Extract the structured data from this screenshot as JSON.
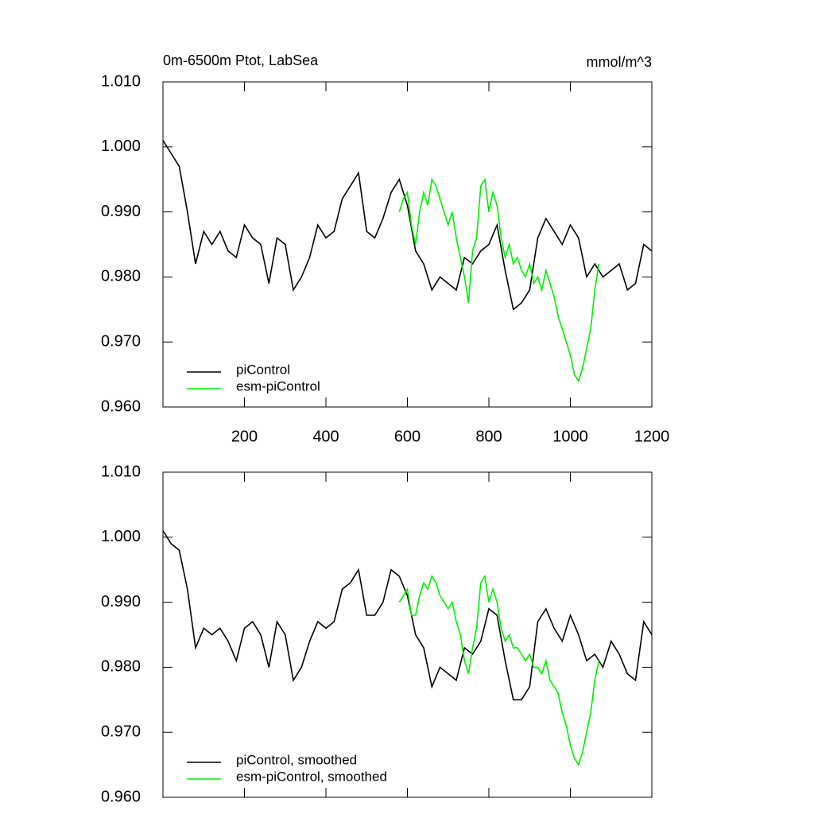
{
  "chart_data": [
    {
      "type": "line",
      "title": "0m-6500m Ptot, LabSea",
      "right_title": "mmol/m^3",
      "xlim": [
        0,
        1200
      ],
      "xticks": [
        200,
        400,
        600,
        800,
        1000,
        1200
      ],
      "show_xtick_labels": true,
      "ylim": [
        0.96,
        1.01
      ],
      "yticks": [
        {
          "value": 0.96,
          "label": "0.960"
        },
        {
          "value": 0.97,
          "label": "0.970"
        },
        {
          "value": 0.98,
          "label": "0.980"
        },
        {
          "value": 0.99,
          "label": "0.990"
        },
        {
          "value": 1.0,
          "label": "1.000"
        },
        {
          "value": 1.01,
          "label": "1.010"
        }
      ],
      "legend": "lower left",
      "series": [
        {
          "name": "piControl",
          "color": "#000000",
          "x": [
            0,
            20,
            40,
            60,
            80,
            100,
            120,
            140,
            160,
            180,
            200,
            220,
            240,
            260,
            280,
            300,
            320,
            340,
            360,
            380,
            400,
            420,
            440,
            460,
            480,
            500,
            520,
            540,
            560,
            580,
            600,
            620,
            640,
            660,
            680,
            700,
            720,
            740,
            760,
            780,
            800,
            820,
            840,
            860,
            880,
            900,
            920,
            940,
            960,
            980,
            1000,
            1020,
            1040,
            1060,
            1080,
            1100,
            1120,
            1140,
            1160,
            1180,
            1200
          ],
          "values": [
            1.001,
            0.999,
            0.997,
            0.99,
            0.982,
            0.987,
            0.985,
            0.987,
            0.984,
            0.983,
            0.988,
            0.986,
            0.985,
            0.979,
            0.986,
            0.985,
            0.978,
            0.98,
            0.983,
            0.988,
            0.986,
            0.987,
            0.992,
            0.994,
            0.996,
            0.987,
            0.986,
            0.989,
            0.993,
            0.995,
            0.991,
            0.984,
            0.982,
            0.978,
            0.98,
            0.979,
            0.978,
            0.983,
            0.982,
            0.984,
            0.985,
            0.988,
            0.981,
            0.975,
            0.976,
            0.978,
            0.986,
            0.989,
            0.987,
            0.985,
            0.988,
            0.986,
            0.98,
            0.982,
            0.98,
            0.981,
            0.982,
            0.978,
            0.979,
            0.985,
            0.984
          ]
        },
        {
          "name": "esm-piControl",
          "color": "#00ee00",
          "x": [
            580,
            590,
            600,
            610,
            620,
            630,
            640,
            650,
            660,
            670,
            680,
            690,
            700,
            710,
            720,
            730,
            740,
            750,
            760,
            770,
            780,
            790,
            800,
            810,
            820,
            830,
            840,
            850,
            860,
            870,
            880,
            890,
            900,
            910,
            920,
            930,
            940,
            950,
            960,
            970,
            980,
            990,
            1000,
            1010,
            1020,
            1030,
            1040,
            1050,
            1060,
            1070
          ],
          "values": [
            0.99,
            0.992,
            0.993,
            0.988,
            0.985,
            0.99,
            0.993,
            0.991,
            0.995,
            0.994,
            0.992,
            0.99,
            0.988,
            0.99,
            0.986,
            0.983,
            0.98,
            0.976,
            0.984,
            0.986,
            0.994,
            0.995,
            0.99,
            0.993,
            0.991,
            0.986,
            0.983,
            0.985,
            0.982,
            0.983,
            0.981,
            0.98,
            0.982,
            0.979,
            0.98,
            0.978,
            0.981,
            0.979,
            0.977,
            0.974,
            0.972,
            0.97,
            0.968,
            0.965,
            0.964,
            0.966,
            0.969,
            0.972,
            0.978,
            0.982
          ]
        }
      ]
    },
    {
      "type": "line",
      "xlim": [
        0,
        1200
      ],
      "xticks": [
        200,
        400,
        600,
        800,
        1000,
        1200
      ],
      "show_xtick_labels": false,
      "ylim": [
        0.96,
        1.01
      ],
      "yticks": [
        {
          "value": 0.96,
          "label": "0.960"
        },
        {
          "value": 0.97,
          "label": "0.970"
        },
        {
          "value": 0.98,
          "label": "0.980"
        },
        {
          "value": 0.99,
          "label": "0.990"
        },
        {
          "value": 1.0,
          "label": "1.000"
        },
        {
          "value": 1.01,
          "label": "1.010"
        }
      ],
      "legend": "lower left",
      "series": [
        {
          "name": "piControl, smoothed",
          "color": "#000000",
          "x": [
            0,
            20,
            40,
            60,
            80,
            100,
            120,
            140,
            160,
            180,
            200,
            220,
            240,
            260,
            280,
            300,
            320,
            340,
            360,
            380,
            400,
            420,
            440,
            460,
            480,
            500,
            520,
            540,
            560,
            580,
            600,
            620,
            640,
            660,
            680,
            700,
            720,
            740,
            760,
            780,
            800,
            820,
            840,
            860,
            880,
            900,
            920,
            940,
            960,
            980,
            1000,
            1020,
            1040,
            1060,
            1080,
            1100,
            1120,
            1140,
            1160,
            1180,
            1200
          ],
          "values": [
            1.001,
            0.999,
            0.998,
            0.992,
            0.983,
            0.986,
            0.985,
            0.986,
            0.984,
            0.981,
            0.986,
            0.987,
            0.985,
            0.98,
            0.987,
            0.985,
            0.978,
            0.98,
            0.984,
            0.987,
            0.986,
            0.987,
            0.992,
            0.993,
            0.995,
            0.988,
            0.988,
            0.99,
            0.995,
            0.994,
            0.991,
            0.985,
            0.983,
            0.977,
            0.98,
            0.979,
            0.978,
            0.983,
            0.982,
            0.984,
            0.989,
            0.988,
            0.981,
            0.975,
            0.975,
            0.977,
            0.987,
            0.989,
            0.986,
            0.984,
            0.988,
            0.985,
            0.981,
            0.982,
            0.98,
            0.984,
            0.982,
            0.979,
            0.978,
            0.987,
            0.985
          ]
        },
        {
          "name": "esm-piControl, smoothed",
          "color": "#00ee00",
          "x": [
            580,
            590,
            600,
            610,
            620,
            630,
            640,
            650,
            660,
            670,
            680,
            690,
            700,
            710,
            720,
            730,
            740,
            750,
            760,
            770,
            780,
            790,
            800,
            810,
            820,
            830,
            840,
            850,
            860,
            870,
            880,
            890,
            900,
            910,
            920,
            930,
            940,
            950,
            960,
            970,
            980,
            990,
            1000,
            1010,
            1020,
            1030,
            1040,
            1050,
            1060,
            1070
          ],
          "values": [
            0.99,
            0.991,
            0.992,
            0.988,
            0.988,
            0.991,
            0.993,
            0.992,
            0.994,
            0.993,
            0.991,
            0.99,
            0.989,
            0.99,
            0.987,
            0.985,
            0.981,
            0.979,
            0.983,
            0.986,
            0.993,
            0.994,
            0.99,
            0.992,
            0.99,
            0.986,
            0.984,
            0.985,
            0.983,
            0.983,
            0.982,
            0.981,
            0.982,
            0.98,
            0.98,
            0.979,
            0.981,
            0.978,
            0.977,
            0.976,
            0.973,
            0.971,
            0.968,
            0.966,
            0.965,
            0.967,
            0.97,
            0.973,
            0.978,
            0.981
          ]
        }
      ]
    }
  ]
}
